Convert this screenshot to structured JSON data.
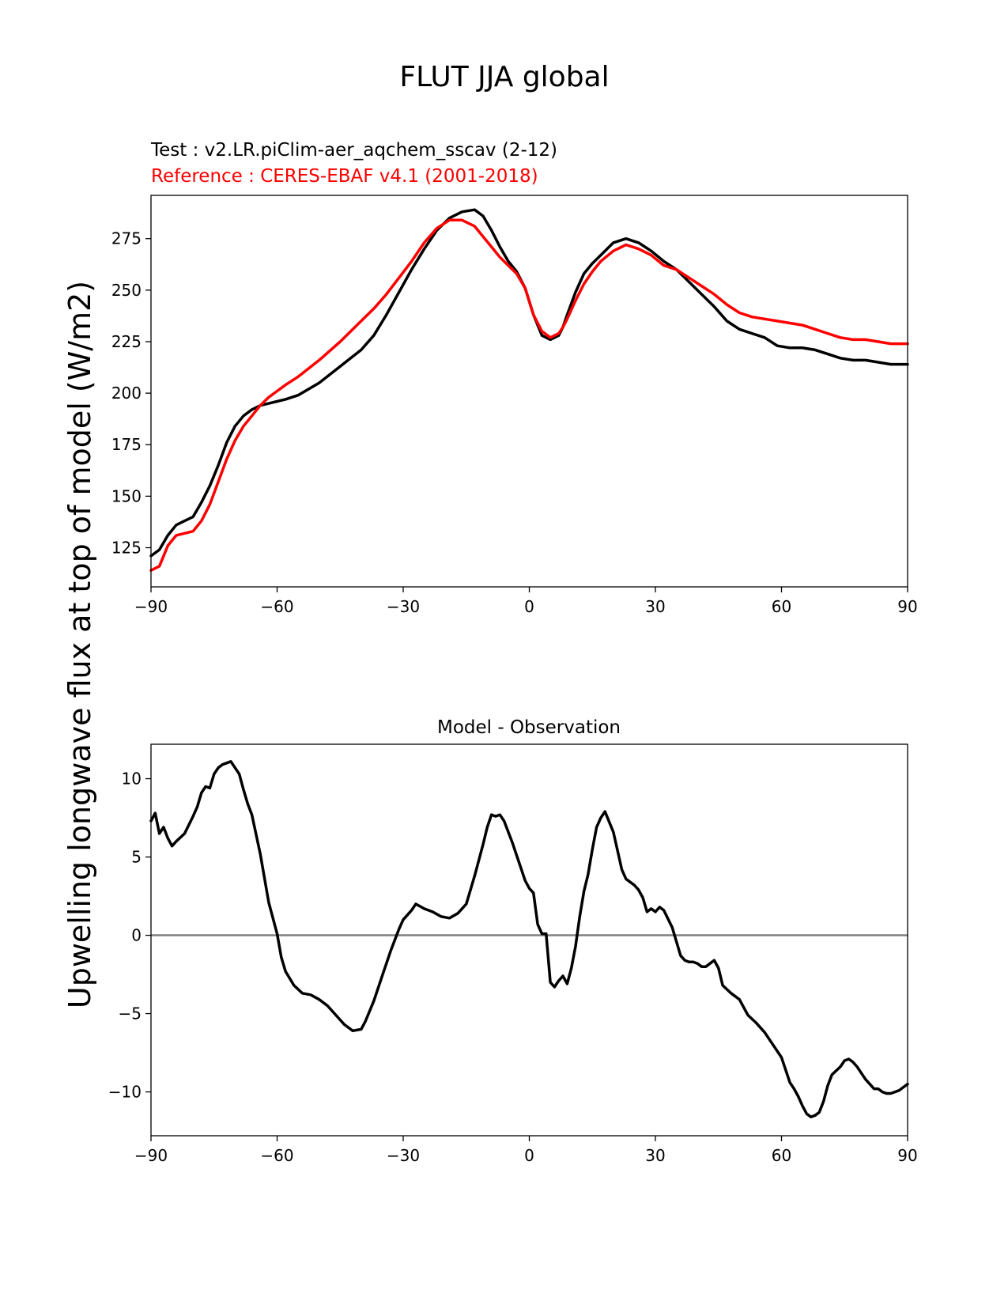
{
  "figure": {
    "title": "FLUT JJA global"
  },
  "chart_data": [
    {
      "type": "line",
      "test_label": "Test : v2.LR.piClim-aer_aqchem_sscav (2-12)",
      "reference_label": "Reference : CERES-EBAF v4.1 (2001-2018)",
      "ylabel": "Upwelling longwave flux at top of model (W/m2)",
      "xlim": [
        -90,
        90
      ],
      "ylim": [
        106,
        296
      ],
      "xticks": [
        -90,
        -60,
        -30,
        0,
        30,
        60,
        90
      ],
      "xtick_labels": [
        "−90",
        "−60",
        "−30",
        "0",
        "30",
        "60",
        "90"
      ],
      "yticks": [
        125,
        150,
        175,
        200,
        225,
        250,
        275
      ],
      "ytick_labels": [
        "125",
        "150",
        "175",
        "200",
        "225",
        "250",
        "275"
      ],
      "colors": {
        "test": "#000000",
        "reference": "#ff0000"
      },
      "series": [
        {
          "name": "Test",
          "color": "#000000",
          "x": [
            -90,
            -88,
            -86,
            -84,
            -82,
            -80,
            -78,
            -76,
            -74,
            -72,
            -70,
            -68,
            -66,
            -64,
            -62,
            -60,
            -58,
            -55,
            -50,
            -45,
            -40,
            -37,
            -34,
            -31,
            -28,
            -25,
            -22,
            -19,
            -16,
            -13,
            -11,
            -9,
            -7,
            -5,
            -3,
            -1,
            1,
            3,
            5,
            7,
            8,
            9,
            11,
            13,
            15,
            17,
            20,
            23,
            26,
            29,
            32,
            35,
            38,
            41,
            44,
            47,
            50,
            53,
            56,
            59,
            62,
            65,
            68,
            71,
            74,
            77,
            80,
            83,
            86,
            88,
            90
          ],
          "values": [
            121,
            124,
            131,
            136,
            138,
            140,
            147,
            155,
            165,
            176,
            184,
            189,
            192,
            194,
            195,
            196,
            197,
            199,
            205,
            213,
            221,
            228,
            238,
            249,
            260,
            270,
            279,
            285,
            288,
            289,
            286,
            279,
            271,
            264,
            259,
            251,
            238,
            228,
            226,
            228,
            232,
            238,
            249,
            258,
            263,
            267,
            273,
            275,
            273,
            269,
            264,
            260,
            254,
            248,
            242,
            235,
            231,
            229,
            227,
            223,
            222,
            222,
            221,
            219,
            217,
            216,
            216,
            215,
            214,
            214,
            214
          ]
        },
        {
          "name": "Reference",
          "color": "#ff0000",
          "x": [
            -90,
            -88,
            -86,
            -84,
            -82,
            -80,
            -78,
            -76,
            -74,
            -72,
            -70,
            -68,
            -66,
            -64,
            -62,
            -60,
            -58,
            -55,
            -50,
            -45,
            -40,
            -37,
            -34,
            -31,
            -28,
            -25,
            -22,
            -19,
            -16,
            -13,
            -11,
            -9,
            -7,
            -5,
            -3,
            -1,
            1,
            3,
            5,
            7,
            8,
            9,
            11,
            13,
            15,
            17,
            20,
            23,
            26,
            29,
            32,
            35,
            38,
            41,
            44,
            47,
            50,
            53,
            56,
            59,
            62,
            65,
            68,
            71,
            74,
            77,
            80,
            83,
            86,
            88,
            90
          ],
          "values": [
            114,
            116,
            126,
            131,
            132,
            133,
            138,
            146,
            157,
            168,
            177,
            184,
            189,
            194,
            198,
            201,
            204,
            208,
            216,
            225,
            235,
            241,
            248,
            256,
            264,
            273,
            280,
            284,
            284,
            281,
            276,
            271,
            266,
            262,
            258,
            251,
            238,
            230,
            227,
            229,
            232,
            236,
            245,
            253,
            259,
            264,
            269,
            272,
            270,
            267,
            262,
            260,
            256,
            252,
            248,
            243,
            239,
            237,
            236,
            235,
            234,
            233,
            231,
            229,
            227,
            226,
            226,
            225,
            224,
            224,
            224
          ]
        }
      ]
    },
    {
      "type": "line",
      "title": "Model - Observation",
      "xlim": [
        -90,
        90
      ],
      "ylim": [
        -12.8,
        12.2
      ],
      "xticks": [
        -90,
        -60,
        -30,
        0,
        30,
        60,
        90
      ],
      "xtick_labels": [
        "−90",
        "−60",
        "−30",
        "0",
        "30",
        "60",
        "90"
      ],
      "yticks": [
        -10,
        -5,
        0,
        5,
        10
      ],
      "ytick_labels": [
        "−10",
        "−5",
        "0",
        "5",
        "10"
      ],
      "zero_line_color": "#808080",
      "series": [
        {
          "name": "Model - Observation",
          "color": "#000000",
          "x": [
            -90,
            -89,
            -88,
            -87,
            -86,
            -85,
            -84,
            -82,
            -80,
            -79,
            -78,
            -77,
            -76,
            -75,
            -74,
            -73,
            -71,
            -69,
            -68,
            -67,
            -66,
            -64,
            -62,
            -60,
            -59,
            -58,
            -56,
            -54,
            -52,
            -50,
            -48,
            -46,
            -44,
            -42,
            -40,
            -39,
            -37,
            -35,
            -33,
            -31,
            -30,
            -28,
            -27,
            -25,
            -23,
            -21,
            -19,
            -17,
            -15,
            -13,
            -11,
            -10,
            -9,
            -8,
            -7,
            -6,
            -4,
            -3,
            -2,
            -1,
            0,
            1,
            2,
            3,
            4,
            5,
            6,
            7,
            8,
            9,
            10,
            11,
            12,
            13,
            14,
            15,
            16,
            17,
            18,
            20,
            22,
            23,
            25,
            26,
            27,
            28,
            29,
            30,
            31,
            32,
            34,
            35,
            36,
            37,
            38,
            39,
            40,
            41,
            42,
            44,
            45,
            46,
            48,
            50,
            52,
            54,
            56,
            58,
            60,
            61,
            62,
            63,
            64,
            65,
            66,
            67,
            68,
            69,
            70,
            71,
            72,
            74,
            75,
            76,
            77,
            78,
            79,
            80,
            81,
            82,
            83,
            84,
            85,
            86,
            87,
            88,
            89,
            90
          ],
          "values": [
            7.3,
            7.8,
            6.5,
            6.9,
            6.2,
            5.7,
            6.0,
            6.5,
            7.6,
            8.2,
            9.1,
            9.5,
            9.4,
            10.3,
            10.7,
            10.9,
            11.1,
            10.3,
            9.3,
            8.4,
            7.7,
            5.2,
            2.1,
            0.1,
            -1.4,
            -2.3,
            -3.2,
            -3.7,
            -3.8,
            -4.1,
            -4.5,
            -5.1,
            -5.7,
            -6.1,
            -6.0,
            -5.5,
            -4.2,
            -2.6,
            -1.0,
            0.4,
            1.0,
            1.6,
            2.0,
            1.7,
            1.5,
            1.2,
            1.1,
            1.4,
            2.0,
            3.8,
            5.8,
            6.9,
            7.7,
            7.6,
            7.7,
            7.3,
            5.9,
            5.1,
            4.3,
            3.5,
            3.0,
            2.7,
            0.7,
            0.1,
            0.1,
            -3.0,
            -3.3,
            -2.9,
            -2.6,
            -3.1,
            -2.1,
            -0.7,
            1.2,
            2.8,
            3.9,
            5.5,
            6.9,
            7.5,
            7.9,
            6.6,
            4.2,
            3.6,
            3.2,
            2.9,
            2.4,
            1.5,
            1.7,
            1.5,
            1.8,
            1.6,
            0.5,
            -0.4,
            -1.3,
            -1.6,
            -1.7,
            -1.7,
            -1.8,
            -2.0,
            -2.0,
            -1.6,
            -2.1,
            -3.2,
            -3.7,
            -4.1,
            -5.1,
            -5.6,
            -6.2,
            -7.0,
            -7.8,
            -8.6,
            -9.4,
            -9.8,
            -10.3,
            -10.9,
            -11.4,
            -11.6,
            -11.5,
            -11.3,
            -10.6,
            -9.6,
            -8.9,
            -8.4,
            -8.0,
            -7.9,
            -8.1,
            -8.4,
            -8.8,
            -9.2,
            -9.5,
            -9.8,
            -9.8,
            -10.0,
            -10.1,
            -10.1,
            -10.0,
            -9.9,
            -9.7,
            -9.5
          ]
        }
      ]
    }
  ]
}
